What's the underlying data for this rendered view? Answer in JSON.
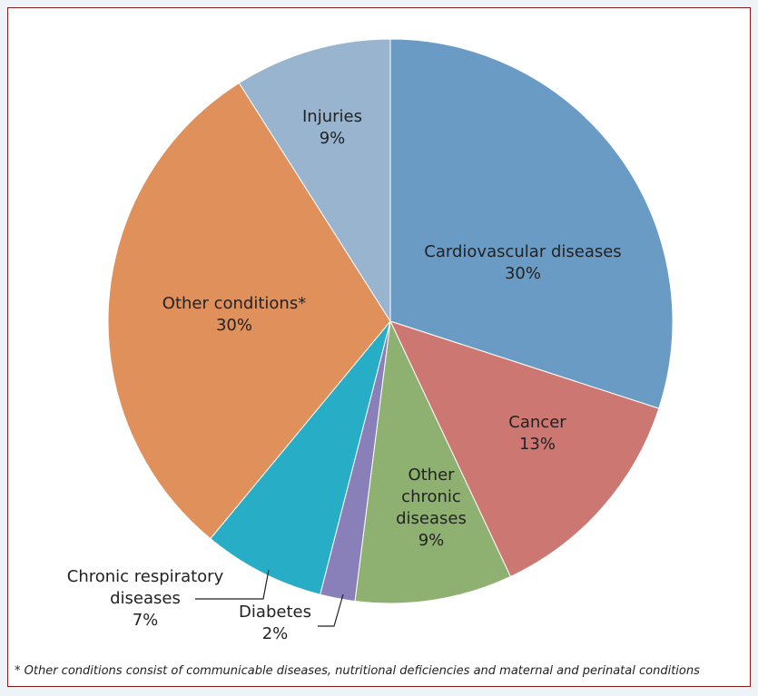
{
  "chart_data": {
    "type": "pie",
    "categories": [
      "Cardiovascular diseases",
      "Cancer",
      "Other chronic diseases",
      "Diabetes",
      "Chronic respiratory diseases",
      "Other conditions*",
      "Injuries"
    ],
    "values": [
      30,
      13,
      9,
      2,
      7,
      30,
      9
    ],
    "value_labels": [
      "30%",
      "13%",
      "9%",
      "2%",
      "7%",
      "30%",
      "9%"
    ],
    "colors": [
      "#6a9bc4",
      "#cc7771",
      "#8eb172",
      "#8a80b9",
      "#27aec6",
      "#e0905b",
      "#98b4cf"
    ],
    "footnote": "* Other conditions consist of communicable diseases, nutritional deficiencies and maternal and perinatal conditions"
  }
}
